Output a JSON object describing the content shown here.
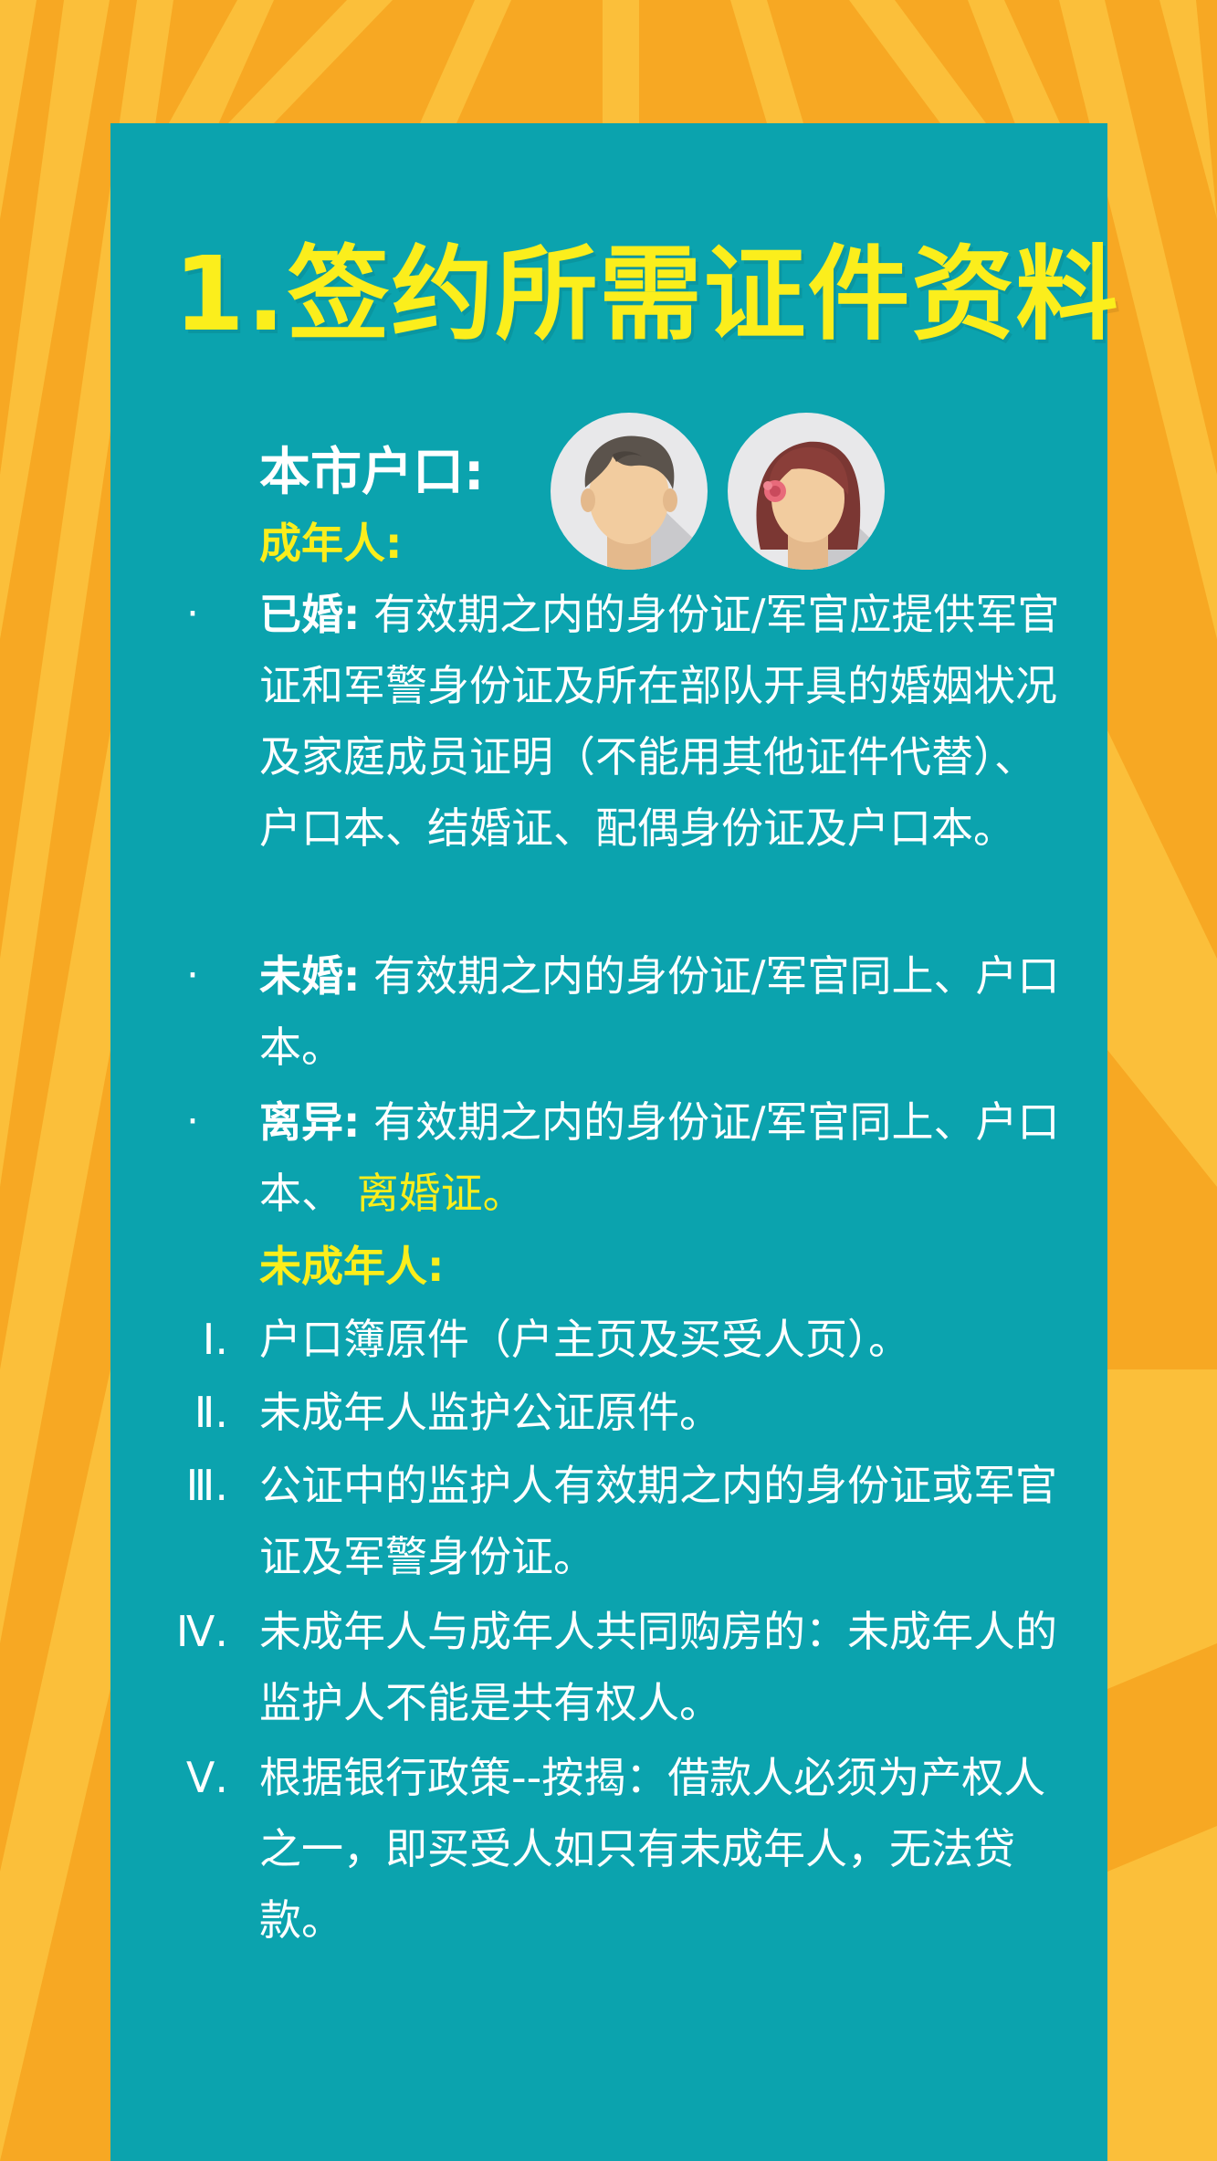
{
  "title": "1.签约所需证件资料",
  "section_heading": "本市户口:",
  "adult_heading": "成年人:",
  "minor_heading": "未成年人:",
  "bullet_symbol": "·",
  "adult_items": [
    {
      "label": "已婚:",
      "text": "有效期之内的身份证/军官应提供军官证和军警身份证及所在部队开具的婚姻状况及家庭成员证明（不能用其他证件代替）、户口本、结婚证、配偶身份证及户口本。",
      "highlight": ""
    },
    {
      "label": "未婚:",
      "text": "有效期之内的身份证/军官同上、户口本。",
      "highlight": ""
    },
    {
      "label": "离异:",
      "text": "有效期之内的身份证/军官同上、户口本、",
      "highlight": "离婚证。"
    }
  ],
  "minor_items": [
    {
      "num": "Ⅰ.",
      "text": "户口簿原件（户主页及买受人页）。"
    },
    {
      "num": "Ⅱ.",
      "text": "未成年人监护公证原件。"
    },
    {
      "num": "Ⅲ.",
      "text": "公证中的监护人有效期之内的身份证或军官证及军警身份证。"
    },
    {
      "num": "Ⅳ.",
      "text": "未成年人与成年人共同购房的：未成年人的监护人不能是共有权人。"
    },
    {
      "num": "Ⅴ.",
      "text": "根据银行政策--按揭：借款人必须为产权人之一，即买受人如只有未成年人，无法贷款。"
    }
  ],
  "icons": [
    "man-avatar-icon",
    "woman-avatar-icon"
  ],
  "colors": {
    "background": "#f7a823",
    "panel": "#0ba3ae",
    "title": "#fbee1c",
    "accent": "#fbee1c",
    "text": "#ffffff"
  }
}
